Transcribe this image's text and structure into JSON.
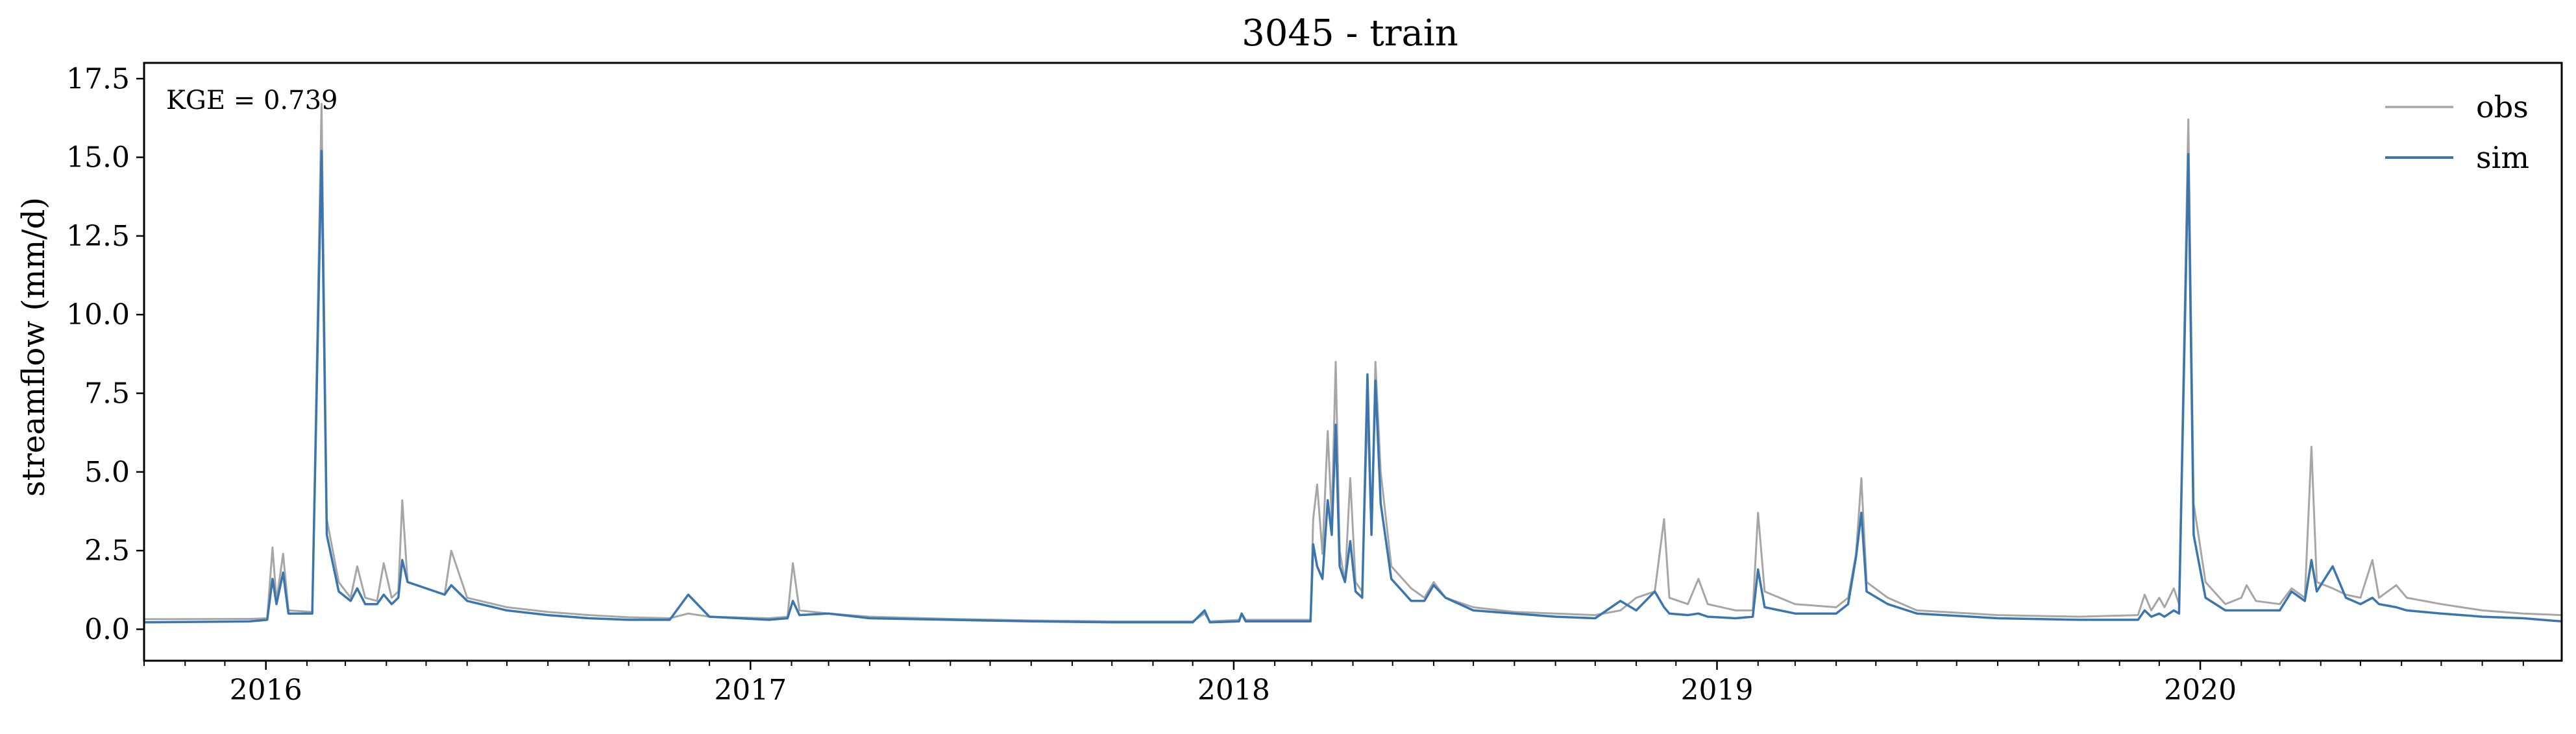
{
  "chart_data": {
    "type": "line",
    "title": "3045 - train",
    "xlabel": "",
    "ylabel": "streamflow (mm/d)",
    "annotation": "KGE = 0.739",
    "xlim": [
      "2015-10-01",
      "2020-09-30"
    ],
    "ylim": [
      -1.0,
      18.0
    ],
    "x_ticks": [
      "2016",
      "2017",
      "2018",
      "2019",
      "2020"
    ],
    "y_ticks": [
      "0.0",
      "2.5",
      "5.0",
      "7.5",
      "10.0",
      "12.5",
      "15.0",
      "17.5"
    ],
    "legend_position": "top-right",
    "grid": false,
    "series": [
      {
        "name": "obs",
        "color": "#a6a6a6",
        "points": [
          [
            "2015-10-01",
            0.32
          ],
          [
            "2015-12-20",
            0.33
          ],
          [
            "2016-01-02",
            0.35
          ],
          [
            "2016-01-06",
            2.6
          ],
          [
            "2016-01-09",
            0.9
          ],
          [
            "2016-01-14",
            2.4
          ],
          [
            "2016-01-18",
            0.6
          ],
          [
            "2016-02-05",
            0.55
          ],
          [
            "2016-02-12",
            16.7
          ],
          [
            "2016-02-16",
            3.5
          ],
          [
            "2016-02-25",
            1.5
          ],
          [
            "2016-03-05",
            1.0
          ],
          [
            "2016-03-10",
            2.0
          ],
          [
            "2016-03-16",
            1.0
          ],
          [
            "2016-03-25",
            0.9
          ],
          [
            "2016-03-30",
            2.1
          ],
          [
            "2016-04-05",
            1.0
          ],
          [
            "2016-04-10",
            1.2
          ],
          [
            "2016-04-13",
            4.1
          ],
          [
            "2016-04-17",
            1.5
          ],
          [
            "2016-05-01",
            1.3
          ],
          [
            "2016-05-15",
            1.1
          ],
          [
            "2016-05-20",
            2.5
          ],
          [
            "2016-06-01",
            1.0
          ],
          [
            "2016-07-01",
            0.7
          ],
          [
            "2016-08-01",
            0.55
          ],
          [
            "2016-09-01",
            0.45
          ],
          [
            "2016-10-01",
            0.38
          ],
          [
            "2016-11-01",
            0.35
          ],
          [
            "2016-11-15",
            0.5
          ],
          [
            "2016-12-01",
            0.4
          ],
          [
            "2017-01-15",
            0.35
          ],
          [
            "2017-01-29",
            0.4
          ],
          [
            "2017-02-02",
            2.1
          ],
          [
            "2017-02-07",
            0.6
          ],
          [
            "2017-03-01",
            0.5
          ],
          [
            "2017-04-01",
            0.4
          ],
          [
            "2017-06-01",
            0.33
          ],
          [
            "2017-08-01",
            0.28
          ],
          [
            "2017-10-01",
            0.25
          ],
          [
            "2017-12-01",
            0.25
          ],
          [
            "2017-12-10",
            0.5
          ],
          [
            "2017-12-14",
            0.25
          ],
          [
            "2018-01-05",
            0.3
          ],
          [
            "2018-01-07",
            0.5
          ],
          [
            "2018-01-10",
            0.3
          ],
          [
            "2018-02-28",
            0.3
          ],
          [
            "2018-03-02",
            3.5
          ],
          [
            "2018-03-05",
            4.6
          ],
          [
            "2018-03-09",
            2.4
          ],
          [
            "2018-03-13",
            6.3
          ],
          [
            "2018-03-16",
            3.5
          ],
          [
            "2018-03-19",
            8.5
          ],
          [
            "2018-03-22",
            2.5
          ],
          [
            "2018-03-26",
            1.5
          ],
          [
            "2018-03-30",
            4.8
          ],
          [
            "2018-04-03",
            1.5
          ],
          [
            "2018-04-08",
            1.2
          ],
          [
            "2018-04-12",
            7.0
          ],
          [
            "2018-04-15",
            3.0
          ],
          [
            "2018-04-18",
            8.5
          ],
          [
            "2018-04-22",
            5.0
          ],
          [
            "2018-04-30",
            2.0
          ],
          [
            "2018-05-15",
            1.3
          ],
          [
            "2018-05-25",
            1.0
          ],
          [
            "2018-06-01",
            1.5
          ],
          [
            "2018-06-10",
            1.0
          ],
          [
            "2018-07-01",
            0.7
          ],
          [
            "2018-08-01",
            0.55
          ],
          [
            "2018-09-01",
            0.5
          ],
          [
            "2018-10-01",
            0.45
          ],
          [
            "2018-10-20",
            0.6
          ],
          [
            "2018-11-01",
            1.0
          ],
          [
            "2018-11-15",
            1.2
          ],
          [
            "2018-11-22",
            3.5
          ],
          [
            "2018-11-26",
            1.0
          ],
          [
            "2018-12-10",
            0.8
          ],
          [
            "2018-12-18",
            1.6
          ],
          [
            "2018-12-25",
            0.8
          ],
          [
            "2019-01-15",
            0.6
          ],
          [
            "2019-01-28",
            0.6
          ],
          [
            "2019-02-01",
            3.7
          ],
          [
            "2019-02-06",
            1.2
          ],
          [
            "2019-03-01",
            0.8
          ],
          [
            "2019-04-01",
            0.7
          ],
          [
            "2019-04-10",
            1.0
          ],
          [
            "2019-04-16",
            2.4
          ],
          [
            "2019-04-20",
            4.8
          ],
          [
            "2019-04-24",
            1.5
          ],
          [
            "2019-05-10",
            1.0
          ],
          [
            "2019-06-01",
            0.6
          ],
          [
            "2019-08-01",
            0.45
          ],
          [
            "2019-10-01",
            0.4
          ],
          [
            "2019-11-15",
            0.45
          ],
          [
            "2019-11-20",
            1.1
          ],
          [
            "2019-11-25",
            0.6
          ],
          [
            "2019-12-01",
            1.0
          ],
          [
            "2019-12-05",
            0.7
          ],
          [
            "2019-12-12",
            1.3
          ],
          [
            "2019-12-16",
            0.8
          ],
          [
            "2019-12-23",
            16.2
          ],
          [
            "2019-12-27",
            4.0
          ],
          [
            "2020-01-05",
            1.5
          ],
          [
            "2020-01-20",
            0.8
          ],
          [
            "2020-02-01",
            1.0
          ],
          [
            "2020-02-05",
            1.4
          ],
          [
            "2020-02-12",
            0.9
          ],
          [
            "2020-03-01",
            0.8
          ],
          [
            "2020-03-10",
            1.3
          ],
          [
            "2020-03-20",
            1.0
          ],
          [
            "2020-03-25",
            5.8
          ],
          [
            "2020-03-29",
            1.5
          ],
          [
            "2020-04-10",
            1.3
          ],
          [
            "2020-04-20",
            1.1
          ],
          [
            "2020-05-01",
            1.0
          ],
          [
            "2020-05-10",
            2.2
          ],
          [
            "2020-05-15",
            1.0
          ],
          [
            "2020-05-28",
            1.4
          ],
          [
            "2020-06-05",
            1.0
          ],
          [
            "2020-07-01",
            0.8
          ],
          [
            "2020-08-01",
            0.6
          ],
          [
            "2020-09-01",
            0.5
          ],
          [
            "2020-09-30",
            0.45
          ]
        ]
      },
      {
        "name": "sim",
        "color": "#3b75af",
        "points": [
          [
            "2015-10-01",
            0.22
          ],
          [
            "2015-12-20",
            0.25
          ],
          [
            "2016-01-02",
            0.3
          ],
          [
            "2016-01-06",
            1.6
          ],
          [
            "2016-01-09",
            0.8
          ],
          [
            "2016-01-14",
            1.8
          ],
          [
            "2016-01-18",
            0.5
          ],
          [
            "2016-02-05",
            0.5
          ],
          [
            "2016-02-12",
            15.2
          ],
          [
            "2016-02-16",
            3.0
          ],
          [
            "2016-02-25",
            1.2
          ],
          [
            "2016-03-05",
            0.9
          ],
          [
            "2016-03-10",
            1.3
          ],
          [
            "2016-03-16",
            0.8
          ],
          [
            "2016-03-25",
            0.8
          ],
          [
            "2016-03-30",
            1.1
          ],
          [
            "2016-04-05",
            0.8
          ],
          [
            "2016-04-10",
            1.0
          ],
          [
            "2016-04-13",
            2.2
          ],
          [
            "2016-04-17",
            1.5
          ],
          [
            "2016-05-01",
            1.3
          ],
          [
            "2016-05-15",
            1.1
          ],
          [
            "2016-05-20",
            1.4
          ],
          [
            "2016-06-01",
            0.9
          ],
          [
            "2016-07-01",
            0.6
          ],
          [
            "2016-08-01",
            0.45
          ],
          [
            "2016-09-01",
            0.35
          ],
          [
            "2016-10-01",
            0.3
          ],
          [
            "2016-11-01",
            0.3
          ],
          [
            "2016-11-15",
            1.1
          ],
          [
            "2016-12-01",
            0.4
          ],
          [
            "2017-01-15",
            0.3
          ],
          [
            "2017-01-29",
            0.35
          ],
          [
            "2017-02-02",
            0.9
          ],
          [
            "2017-02-07",
            0.45
          ],
          [
            "2017-03-01",
            0.5
          ],
          [
            "2017-04-01",
            0.35
          ],
          [
            "2017-06-01",
            0.3
          ],
          [
            "2017-08-01",
            0.25
          ],
          [
            "2017-10-01",
            0.22
          ],
          [
            "2017-12-01",
            0.22
          ],
          [
            "2017-12-10",
            0.6
          ],
          [
            "2017-12-14",
            0.22
          ],
          [
            "2018-01-05",
            0.25
          ],
          [
            "2018-01-07",
            0.5
          ],
          [
            "2018-01-10",
            0.25
          ],
          [
            "2018-02-28",
            0.25
          ],
          [
            "2018-03-02",
            2.7
          ],
          [
            "2018-03-05",
            2.0
          ],
          [
            "2018-03-09",
            1.6
          ],
          [
            "2018-03-13",
            4.1
          ],
          [
            "2018-03-16",
            3.0
          ],
          [
            "2018-03-19",
            6.5
          ],
          [
            "2018-03-22",
            2.0
          ],
          [
            "2018-03-26",
            1.5
          ],
          [
            "2018-03-30",
            2.8
          ],
          [
            "2018-04-03",
            1.2
          ],
          [
            "2018-04-08",
            1.0
          ],
          [
            "2018-04-12",
            8.1
          ],
          [
            "2018-04-15",
            3.0
          ],
          [
            "2018-04-18",
            7.9
          ],
          [
            "2018-04-22",
            4.0
          ],
          [
            "2018-04-30",
            1.6
          ],
          [
            "2018-05-15",
            0.9
          ],
          [
            "2018-05-25",
            0.9
          ],
          [
            "2018-06-01",
            1.4
          ],
          [
            "2018-06-10",
            1.0
          ],
          [
            "2018-07-01",
            0.6
          ],
          [
            "2018-08-01",
            0.5
          ],
          [
            "2018-09-01",
            0.4
          ],
          [
            "2018-10-01",
            0.35
          ],
          [
            "2018-10-20",
            0.9
          ],
          [
            "2018-11-01",
            0.6
          ],
          [
            "2018-11-15",
            1.2
          ],
          [
            "2018-11-22",
            0.7
          ],
          [
            "2018-11-26",
            0.5
          ],
          [
            "2018-12-10",
            0.45
          ],
          [
            "2018-12-18",
            0.5
          ],
          [
            "2018-12-25",
            0.4
          ],
          [
            "2019-01-15",
            0.35
          ],
          [
            "2019-01-28",
            0.4
          ],
          [
            "2019-02-01",
            1.9
          ],
          [
            "2019-02-06",
            0.7
          ],
          [
            "2019-03-01",
            0.5
          ],
          [
            "2019-04-01",
            0.5
          ],
          [
            "2019-04-10",
            0.8
          ],
          [
            "2019-04-16",
            2.3
          ],
          [
            "2019-04-20",
            3.7
          ],
          [
            "2019-04-24",
            1.2
          ],
          [
            "2019-05-10",
            0.8
          ],
          [
            "2019-06-01",
            0.5
          ],
          [
            "2019-08-01",
            0.35
          ],
          [
            "2019-10-01",
            0.3
          ],
          [
            "2019-11-15",
            0.3
          ],
          [
            "2019-11-20",
            0.6
          ],
          [
            "2019-11-25",
            0.4
          ],
          [
            "2019-12-01",
            0.5
          ],
          [
            "2019-12-05",
            0.4
          ],
          [
            "2019-12-12",
            0.6
          ],
          [
            "2019-12-16",
            0.5
          ],
          [
            "2019-12-23",
            15.1
          ],
          [
            "2019-12-27",
            3.0
          ],
          [
            "2020-01-05",
            1.0
          ],
          [
            "2020-01-20",
            0.6
          ],
          [
            "2020-02-01",
            0.6
          ],
          [
            "2020-02-05",
            0.6
          ],
          [
            "2020-02-12",
            0.6
          ],
          [
            "2020-03-01",
            0.6
          ],
          [
            "2020-03-10",
            1.2
          ],
          [
            "2020-03-20",
            0.9
          ],
          [
            "2020-03-25",
            2.2
          ],
          [
            "2020-03-29",
            1.2
          ],
          [
            "2020-04-10",
            2.0
          ],
          [
            "2020-04-20",
            1.0
          ],
          [
            "2020-05-01",
            0.8
          ],
          [
            "2020-05-10",
            1.0
          ],
          [
            "2020-05-15",
            0.8
          ],
          [
            "2020-05-28",
            0.7
          ],
          [
            "2020-06-05",
            0.6
          ],
          [
            "2020-07-01",
            0.5
          ],
          [
            "2020-08-01",
            0.4
          ],
          [
            "2020-09-01",
            0.35
          ],
          [
            "2020-09-30",
            0.25
          ]
        ]
      }
    ]
  }
}
